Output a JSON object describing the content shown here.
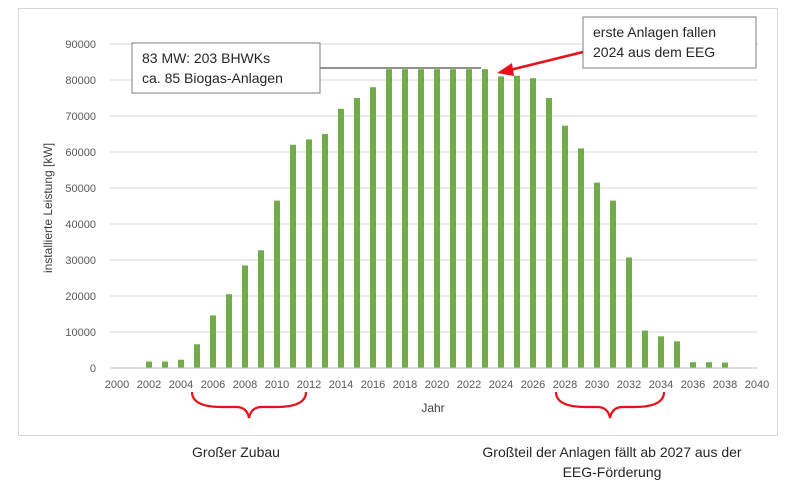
{
  "chart_data": {
    "type": "bar",
    "title": "",
    "xlabel": "Jahr",
    "ylabel": "installierte Leistung [kW]",
    "ylim": [
      0,
      90000
    ],
    "yticks": [
      "0",
      "10000",
      "20000",
      "30000",
      "40000",
      "50000",
      "60000",
      "70000",
      "80000",
      "90000"
    ],
    "xlim": [
      2000,
      2040
    ],
    "xticks": [
      "2000",
      "2002",
      "2004",
      "2006",
      "2008",
      "2010",
      "2012",
      "2014",
      "2016",
      "2018",
      "2020",
      "2022",
      "2024",
      "2026",
      "2028",
      "2030",
      "2032",
      "2034",
      "2036",
      "2038",
      "2040"
    ],
    "grid": true,
    "legend": "none",
    "bar_color": "#70ad47",
    "x": [
      2002,
      2003,
      2004,
      2005,
      2006,
      2007,
      2008,
      2009,
      2010,
      2011,
      2012,
      2013,
      2014,
      2015,
      2016,
      2017,
      2018,
      2019,
      2020,
      2021,
      2022,
      2023,
      2024,
      2025,
      2026,
      2027,
      2028,
      2029,
      2030,
      2031,
      2032,
      2033,
      2034,
      2035,
      2036,
      2037,
      2038
    ],
    "values": [
      1800,
      1800,
      2300,
      6600,
      14600,
      20500,
      28500,
      32700,
      46500,
      62000,
      63500,
      65000,
      72000,
      75000,
      78000,
      83000,
      83000,
      83000,
      83000,
      83000,
      83000,
      83000,
      81000,
      81200,
      80500,
      75000,
      67300,
      61000,
      51500,
      46500,
      30700,
      10400,
      8800,
      7400,
      1600,
      1600,
      1500
    ]
  },
  "callouts": {
    "left_box": {
      "line1": "83 MW: 203 BHWKs",
      "line2": "ca. 85 Biogas-Anlagen"
    },
    "right_box": {
      "line1": "erste Anlagen fallen",
      "line2": "2024 aus dem EEG"
    },
    "arrow_color": "#e8101a"
  },
  "captions": {
    "left": "Großer Zubau",
    "right_line1": "Großteil der Anlagen fällt ab 2027 aus der",
    "right_line2": "EEG-Förderung",
    "brace_color": "#e8101a"
  }
}
